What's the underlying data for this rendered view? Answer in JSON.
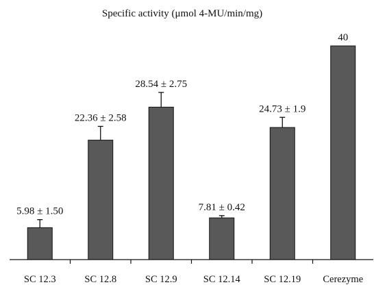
{
  "chart_data": {
    "type": "bar",
    "title": "Specific activity (μmol 4-MU/min/mg)",
    "categories": [
      "SC 12.3",
      "SC 12.8",
      "SC 12.9",
      "SC 12.14",
      "SC 12.19",
      "Cerezyme"
    ],
    "values": [
      5.98,
      22.36,
      28.54,
      7.81,
      24.73,
      40
    ],
    "errors": [
      1.5,
      2.58,
      2.75,
      0.42,
      1.9,
      null
    ],
    "data_labels": [
      "5.98 ± 1.50",
      "22.36 ± 2.58",
      "28.54 ± 2.75",
      "7.81 ± 0.42",
      "24.73 ± 1.9",
      "40"
    ],
    "ylim": [
      0,
      41
    ],
    "grid": false,
    "bar_color": "#595959"
  }
}
